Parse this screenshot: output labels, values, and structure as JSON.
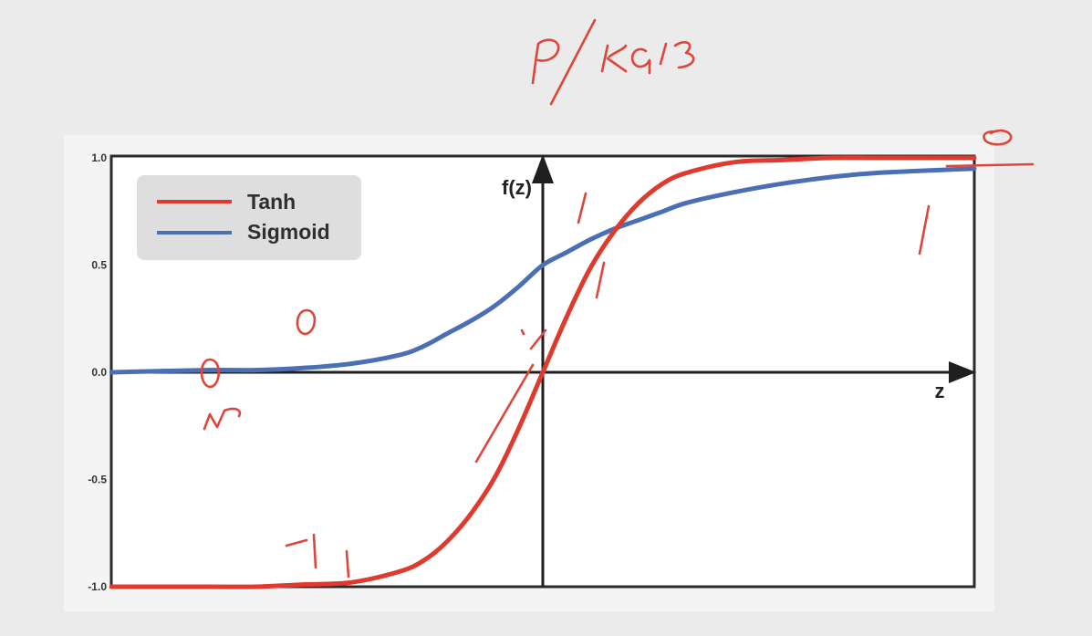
{
  "chart_data": {
    "type": "line",
    "title": "",
    "xlabel": "z",
    "ylabel": "f(z)",
    "xlim": [
      -9,
      9
    ],
    "ylim": [
      -1.0,
      1.0
    ],
    "yticks": [
      {
        "value": 1.0,
        "label": "1.0"
      },
      {
        "value": 0.5,
        "label": "0.5"
      },
      {
        "value": 0.0,
        "label": "0.0"
      },
      {
        "value": -0.5,
        "label": "-0.5"
      },
      {
        "value": -1.0,
        "label": "-1.0"
      }
    ],
    "grid": false,
    "legend_position": "top-left",
    "series": [
      {
        "name": "Tanh",
        "color": "#e03a2f",
        "x": [
          -9,
          -7,
          -6,
          -5,
          -4,
          -3,
          -2.5,
          -2,
          -1.5,
          -1,
          -0.5,
          0,
          0.5,
          1,
          1.5,
          2,
          2.5,
          3,
          4,
          5,
          6,
          7,
          9
        ],
        "y": [
          -1.0,
          -1.0,
          -1.0,
          -0.99,
          -0.98,
          -0.93,
          -0.88,
          -0.79,
          -0.66,
          -0.49,
          -0.26,
          0.0,
          0.26,
          0.49,
          0.66,
          0.79,
          0.88,
          0.93,
          0.98,
          0.99,
          1.0,
          1.0,
          1.0
        ]
      },
      {
        "name": "Sigmoid",
        "color": "#4a6fb5",
        "x": [
          -9,
          -7,
          -6,
          -5,
          -4,
          -3,
          -2.5,
          -2,
          -1.5,
          -1,
          -0.5,
          0,
          0.5,
          1,
          1.5,
          2,
          2.5,
          3,
          4,
          5,
          6,
          7,
          9
        ],
        "y": [
          0.0,
          0.01,
          0.01,
          0.02,
          0.04,
          0.08,
          0.12,
          0.18,
          0.24,
          0.31,
          0.4,
          0.5,
          0.56,
          0.62,
          0.67,
          0.71,
          0.75,
          0.79,
          0.84,
          0.88,
          0.91,
          0.93,
          0.95
        ]
      }
    ]
  },
  "colors": {
    "background": "#ebebeb",
    "plot_background": "#ffffff",
    "axis": "#1f1f1f",
    "legend_box": "#dedede",
    "annotation_ink": "#e0453a"
  },
  "handwritten_annotations": [
    "P/ KG13",
    "0",
    "1",
    "1",
    "0",
    "1",
    "0",
    "w",
    "-1",
    "1"
  ]
}
